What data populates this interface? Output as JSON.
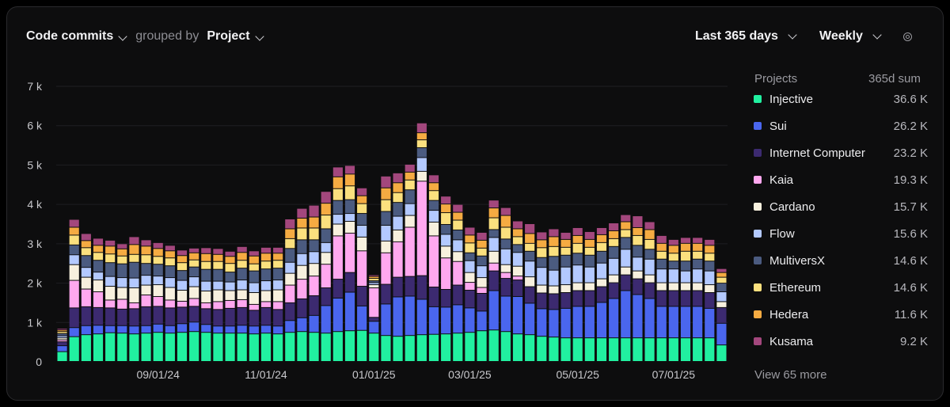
{
  "header": {
    "metric_label": "Code commits",
    "grouped_by_label": "grouped by",
    "group_label": "Project",
    "range_label": "Last 365 days",
    "interval_label": "Weekly"
  },
  "legend": {
    "title": "Projects",
    "value_header": "365d sum",
    "items": [
      {
        "name": "Injective",
        "value": "36.6 K",
        "color": "#21f0a0"
      },
      {
        "name": "Sui",
        "value": "26.2 K",
        "color": "#4a66ee"
      },
      {
        "name": "Internet Computer",
        "value": "23.2 K",
        "color": "#3c2a70"
      },
      {
        "name": "Kaia",
        "value": "19.3 K",
        "color": "#ffa8ef"
      },
      {
        "name": "Cardano",
        "value": "15.7 K",
        "color": "#f7f0de"
      },
      {
        "name": "Flow",
        "value": "15.6 K",
        "color": "#b3c9ff"
      },
      {
        "name": "MultiversX",
        "value": "14.6 K",
        "color": "#4b5b80"
      },
      {
        "name": "Ethereum",
        "value": "14.6 K",
        "color": "#fbe07e"
      },
      {
        "name": "Hedera",
        "value": "11.6 K",
        "color": "#f5ab42"
      },
      {
        "name": "Kusama",
        "value": "9.2 K",
        "color": "#a3477d"
      }
    ],
    "more_label": "View 65 more"
  },
  "chart_data": {
    "type": "bar",
    "stacked": true,
    "yticks": [
      "0",
      "1 k",
      "2 k",
      "3 k",
      "4 k",
      "5 k",
      "6 k",
      "7 k"
    ],
    "ylim": [
      0,
      7000
    ],
    "grid": true,
    "legend_position": "right",
    "x_tick_labels": [
      {
        "label": "09/01/24",
        "index": 8
      },
      {
        "label": "11/01/24",
        "index": 17
      },
      {
        "label": "01/01/25",
        "index": 26
      },
      {
        "label": "03/01/25",
        "index": 34
      },
      {
        "label": "05/01/25",
        "index": 43
      },
      {
        "label": "07/01/25",
        "index": 51
      }
    ],
    "series": [
      {
        "name": "Injective",
        "values": [
          250,
          630,
          680,
          700,
          730,
          720,
          700,
          720,
          740,
          720,
          740,
          760,
          740,
          720,
          720,
          720,
          700,
          720,
          700,
          740,
          760,
          740,
          720,
          760,
          780,
          790,
          720,
          660,
          640,
          660,
          680,
          690,
          700,
          720,
          740,
          780,
          800,
          760,
          700,
          680,
          640,
          620,
          600,
          600,
          600,
          600,
          600,
          600,
          600,
          600,
          600,
          600,
          600,
          600,
          600,
          420
        ]
      },
      {
        "name": "Sui",
        "values": [
          150,
          230,
          230,
          220,
          180,
          190,
          200,
          190,
          210,
          190,
          220,
          240,
          200,
          180,
          180,
          200,
          200,
          200,
          200,
          300,
          350,
          430,
          700,
          850,
          980,
          620,
          300,
          800,
          1000,
          1000,
          900,
          700,
          680,
          720,
          620,
          500,
          1000,
          900,
          950,
          800,
          700,
          700,
          750,
          800,
          800,
          900,
          1000,
          1200,
          1100,
          1000,
          800,
          800,
          800,
          800,
          750,
          550
        ]
      },
      {
        "name": "Internet Computer",
        "values": [
          100,
          500,
          480,
          450,
          450,
          420,
          440,
          480,
          450,
          450,
          420,
          400,
          400,
          420,
          450,
          450,
          400,
          450,
          420,
          450,
          480,
          500,
          450,
          480,
          500,
          500,
          100,
          500,
          500,
          500,
          600,
          500,
          450,
          500,
          450,
          450,
          500,
          450,
          420,
          420,
          400,
          400,
          400,
          400,
          400,
          400,
          400,
          400,
          400,
          400,
          400,
          400,
          400,
          400,
          400,
          400
        ]
      },
      {
        "name": "Kaia",
        "values": [
          50,
          700,
          450,
          400,
          200,
          250,
          150,
          300,
          250,
          200,
          150,
          200,
          150,
          200,
          200,
          200,
          150,
          150,
          200,
          450,
          500,
          500,
          600,
          1100,
          1000,
          900,
          750,
          800,
          900,
          1250,
          2400,
          1300,
          800,
          600,
          200,
          150,
          200,
          150,
          100,
          0,
          0,
          0,
          0,
          0,
          0,
          0,
          0,
          0,
          0,
          0,
          0,
          0,
          0,
          0,
          0,
          0
        ]
      },
      {
        "name": "Cardano",
        "values": [
          50,
          400,
          300,
          300,
          350,
          300,
          380,
          250,
          300,
          320,
          280,
          300,
          300,
          300,
          250,
          250,
          300,
          280,
          300,
          300,
          350,
          320,
          300,
          300,
          300,
          350,
          80,
          300,
          300,
          300,
          250,
          350,
          300,
          250,
          250,
          250,
          300,
          200,
          250,
          250,
          200,
          200,
          200,
          200,
          200,
          200,
          200,
          200,
          200,
          200,
          200,
          200,
          200,
          200,
          200,
          150
        ]
      },
      {
        "name": "Flow",
        "values": [
          50,
          250,
          250,
          200,
          250,
          250,
          250,
          250,
          220,
          250,
          250,
          250,
          250,
          220,
          220,
          250,
          250,
          250,
          250,
          280,
          300,
          300,
          250,
          250,
          200,
          300,
          50,
          400,
          350,
          300,
          350,
          300,
          300,
          300,
          300,
          300,
          350,
          400,
          350,
          400,
          450,
          400,
          450,
          450,
          400,
          400,
          420,
          450,
          350,
          400,
          350,
          350,
          300,
          350,
          350,
          250
        ]
      },
      {
        "name": "MultiversX",
        "values": [
          60,
          250,
          300,
          300,
          350,
          350,
          400,
          300,
          300,
          300,
          250,
          250,
          300,
          300,
          250,
          300,
          300,
          300,
          300,
          350,
          350,
          300,
          350,
          350,
          350,
          300,
          50,
          350,
          350,
          350,
          250,
          250,
          250,
          250,
          200,
          250,
          200,
          250,
          200,
          250,
          250,
          350,
          300,
          300,
          300,
          300,
          300,
          300,
          300,
          250,
          250,
          200,
          250,
          250,
          250,
          220
        ]
      },
      {
        "name": "Ethereum",
        "values": [
          50,
          250,
          200,
          200,
          220,
          200,
          200,
          220,
          200,
          200,
          200,
          180,
          200,
          200,
          220,
          200,
          180,
          200,
          200,
          250,
          300,
          300,
          350,
          300,
          350,
          250,
          60,
          300,
          250,
          250,
          200,
          250,
          300,
          250,
          250,
          200,
          300,
          300,
          200,
          200,
          250,
          250,
          200,
          250,
          200,
          220,
          200,
          200,
          250,
          250,
          200,
          200,
          250,
          200,
          200,
          150
        ]
      },
      {
        "name": "Hedera",
        "values": [
          40,
          200,
          180,
          180,
          200,
          180,
          250,
          220,
          200,
          180,
          180,
          180,
          200,
          180,
          180,
          200,
          200,
          200,
          180,
          250,
          250,
          280,
          300,
          300,
          300,
          200,
          50,
          300,
          250,
          200,
          180,
          200,
          220,
          200,
          200,
          200,
          250,
          300,
          200,
          250,
          200,
          250,
          200,
          200,
          200,
          200,
          200,
          200,
          200,
          250,
          200,
          200,
          200,
          200,
          200,
          120
        ]
      },
      {
        "name": "Kusama",
        "values": [
          40,
          200,
          180,
          180,
          150,
          130,
          200,
          160,
          150,
          140,
          140,
          120,
          150,
          150,
          130,
          150,
          130,
          150,
          150,
          250,
          250,
          300,
          300,
          250,
          220,
          200,
          40,
          300,
          250,
          200,
          250,
          200,
          200,
          200,
          200,
          200,
          200,
          200,
          200,
          250,
          200,
          200,
          180,
          200,
          200,
          180,
          200,
          180,
          300,
          200,
          200,
          150,
          150,
          150,
          150,
          100
        ]
      }
    ]
  }
}
